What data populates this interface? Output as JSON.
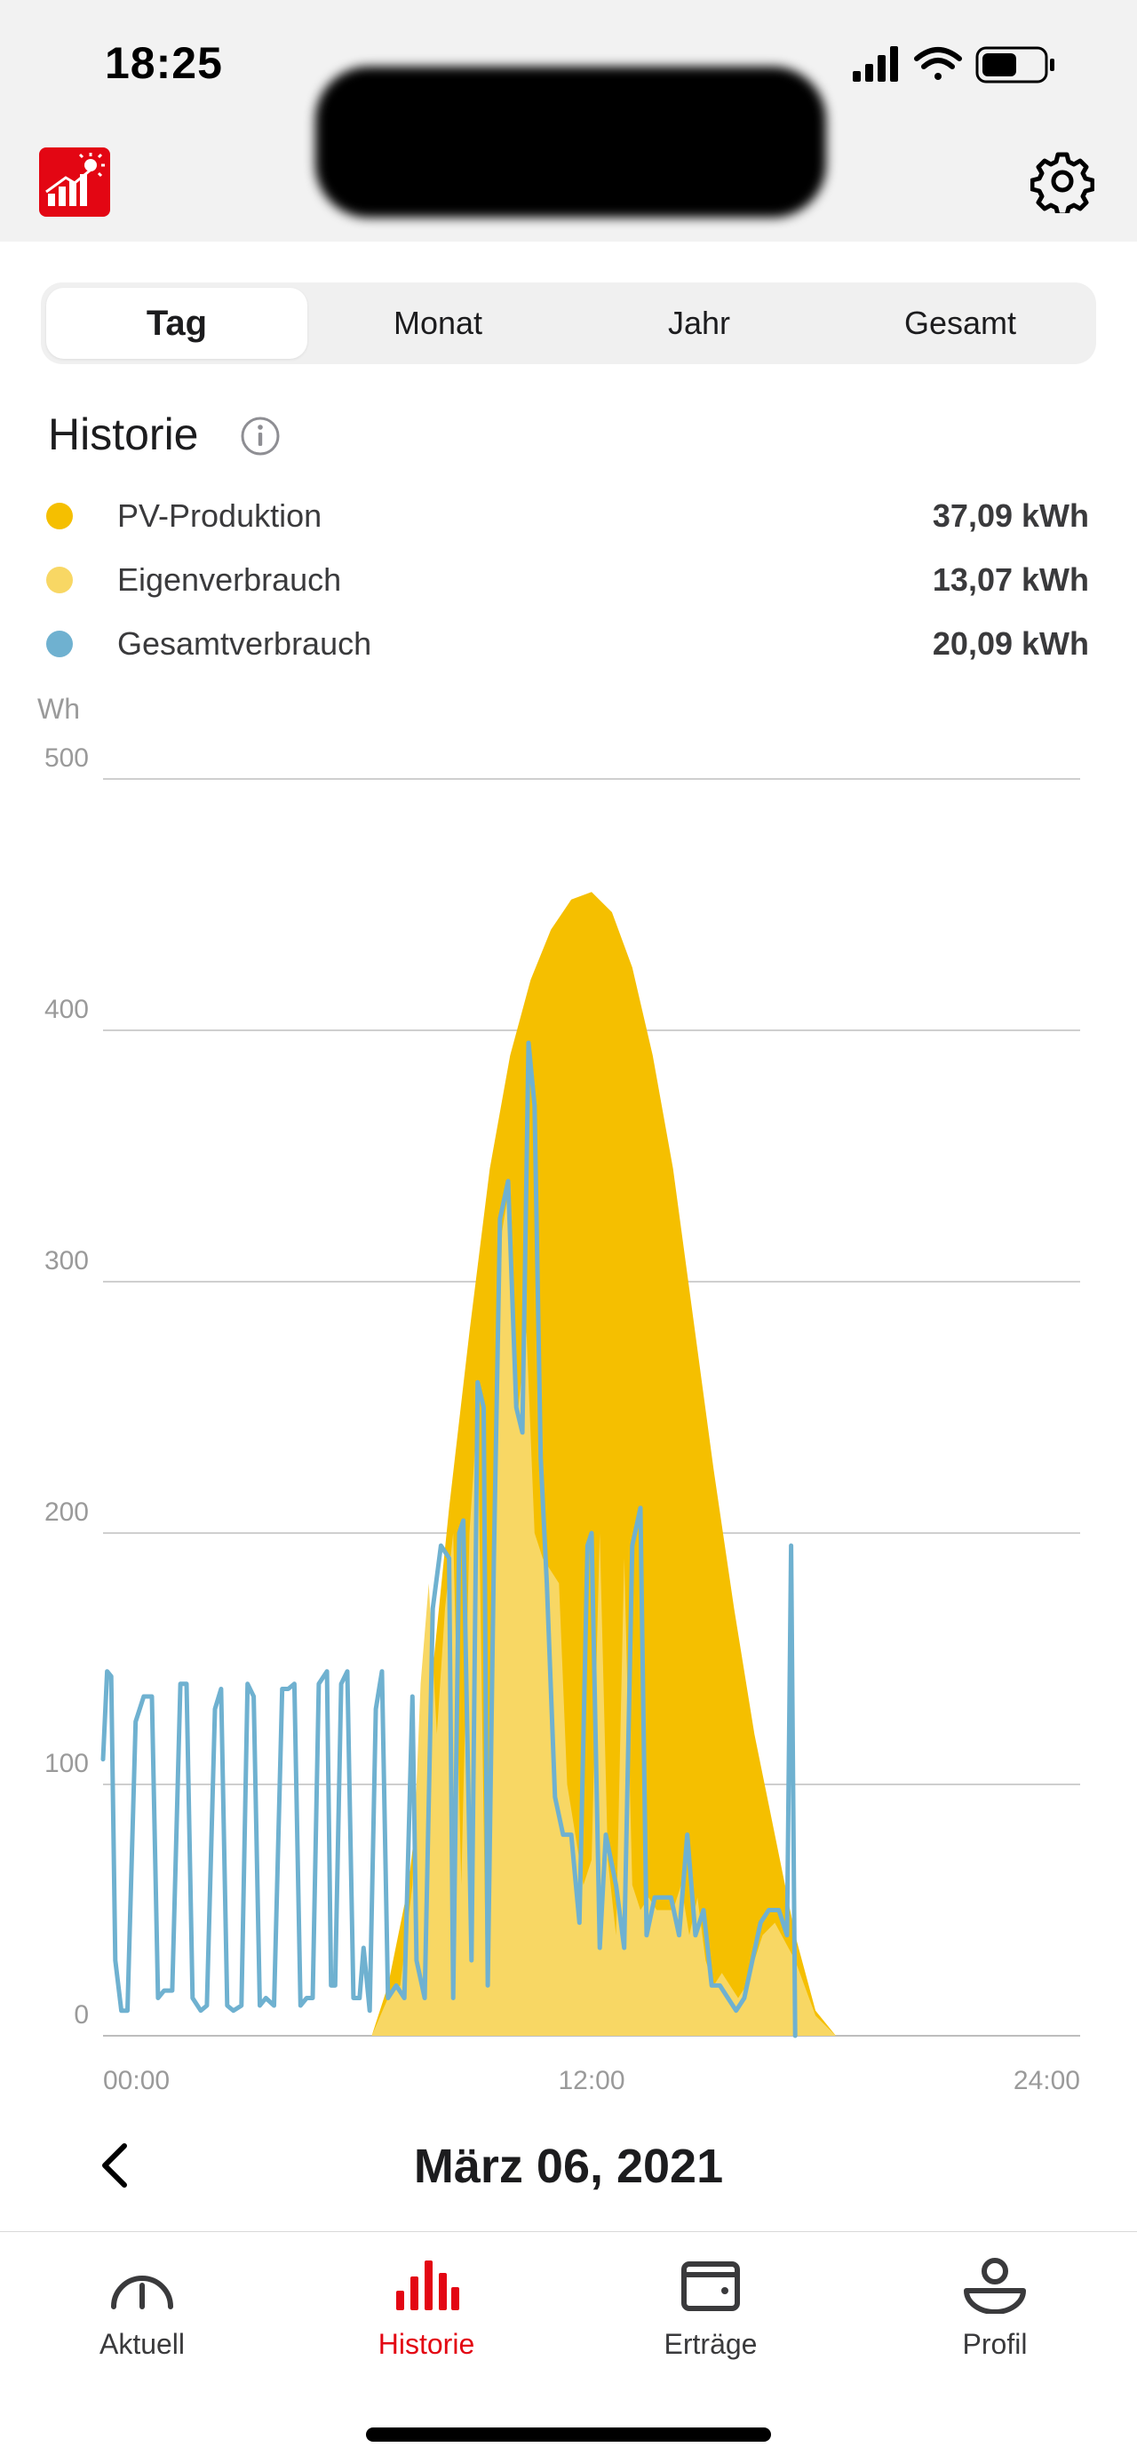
{
  "status_bar": {
    "time": "18:25",
    "icons": [
      "signal-icon",
      "wifi-icon",
      "battery-icon"
    ]
  },
  "header": {
    "logo_icon": "solar-app-logo",
    "settings_icon": "gear-icon"
  },
  "tabs": [
    {
      "label": "Tag",
      "active": true
    },
    {
      "label": "Monat",
      "active": false
    },
    {
      "label": "Jahr",
      "active": false
    },
    {
      "label": "Gesamt",
      "active": false
    }
  ],
  "history": {
    "title": "Historie",
    "legend": [
      {
        "name": "PV-Produktion",
        "value": "37,09 kWh",
        "color": "#f5bf00"
      },
      {
        "name": "Eigenverbrauch",
        "value": "13,07 kWh",
        "color": "#f8d764"
      },
      {
        "name": "Gesamtverbrauch",
        "value": "20,09 kWh",
        "color": "#6fb1d0"
      }
    ]
  },
  "chart_data": {
    "type": "area",
    "ylabel": "Wh",
    "ylim": [
      0,
      500
    ],
    "yticks": [
      "0",
      "100",
      "200",
      "300",
      "400",
      "500"
    ],
    "xticks": [
      "00:00",
      "12:00",
      "24:00"
    ],
    "xlim_hours": [
      0,
      24
    ],
    "grid": true,
    "series": [
      {
        "name": "PV-Produktion",
        "color": "#f5bf00",
        "kind": "area",
        "points": [
          [
            0,
            0
          ],
          [
            6.6,
            0
          ],
          [
            7,
            20
          ],
          [
            7.5,
            60
          ],
          [
            8,
            130
          ],
          [
            8.5,
            210
          ],
          [
            9,
            280
          ],
          [
            9.5,
            345
          ],
          [
            10,
            390
          ],
          [
            10.5,
            420
          ],
          [
            11,
            440
          ],
          [
            11.5,
            452
          ],
          [
            12,
            455
          ],
          [
            12.5,
            447
          ],
          [
            13,
            425
          ],
          [
            13.5,
            390
          ],
          [
            14,
            345
          ],
          [
            14.5,
            285
          ],
          [
            15,
            225
          ],
          [
            15.5,
            170
          ],
          [
            16,
            120
          ],
          [
            16.5,
            80
          ],
          [
            17,
            40
          ],
          [
            17.5,
            10
          ],
          [
            18,
            0
          ],
          [
            24,
            0
          ]
        ]
      },
      {
        "name": "Eigenverbrauch",
        "color": "#f8d764",
        "kind": "area",
        "points": [
          [
            0,
            0
          ],
          [
            6.6,
            0
          ],
          [
            7,
            15
          ],
          [
            7.3,
            20
          ],
          [
            7.6,
            60
          ],
          [
            7.8,
            140
          ],
          [
            8,
            180
          ],
          [
            8.2,
            120
          ],
          [
            8.4,
            170
          ],
          [
            8.6,
            200
          ],
          [
            8.8,
            60
          ],
          [
            9,
            200
          ],
          [
            9.2,
            250
          ],
          [
            9.4,
            30
          ],
          [
            9.6,
            180
          ],
          [
            9.8,
            320
          ],
          [
            10,
            340
          ],
          [
            10.2,
            250
          ],
          [
            10.4,
            280
          ],
          [
            10.6,
            200
          ],
          [
            10.8,
            190
          ],
          [
            11,
            185
          ],
          [
            11.2,
            180
          ],
          [
            11.4,
            100
          ],
          [
            11.6,
            80
          ],
          [
            11.8,
            60
          ],
          [
            12,
            70
          ],
          [
            12.2,
            200
          ],
          [
            12.4,
            70
          ],
          [
            12.6,
            40
          ],
          [
            12.8,
            190
          ],
          [
            13,
            60
          ],
          [
            13.2,
            50
          ],
          [
            13.4,
            55
          ],
          [
            13.6,
            50
          ],
          [
            13.8,
            50
          ],
          [
            14,
            50
          ],
          [
            14.2,
            60
          ],
          [
            14.4,
            40
          ],
          [
            14.6,
            55
          ],
          [
            14.8,
            30
          ],
          [
            15,
            20
          ],
          [
            15.2,
            25
          ],
          [
            15.4,
            20
          ],
          [
            15.6,
            15
          ],
          [
            15.8,
            20
          ],
          [
            16,
            30
          ],
          [
            16.2,
            40
          ],
          [
            16.5,
            45
          ],
          [
            17,
            30
          ],
          [
            17.5,
            8
          ],
          [
            18,
            0
          ],
          [
            24,
            0
          ]
        ]
      },
      {
        "name": "Gesamtverbrauch",
        "color": "#6fb1d0",
        "kind": "line",
        "points": [
          [
            0,
            110
          ],
          [
            0.1,
            145
          ],
          [
            0.2,
            143
          ],
          [
            0.3,
            30
          ],
          [
            0.45,
            10
          ],
          [
            0.6,
            10
          ],
          [
            0.8,
            125
          ],
          [
            1,
            135
          ],
          [
            1.2,
            135
          ],
          [
            1.35,
            15
          ],
          [
            1.5,
            18
          ],
          [
            1.7,
            18
          ],
          [
            1.9,
            140
          ],
          [
            2.05,
            140
          ],
          [
            2.2,
            15
          ],
          [
            2.4,
            10
          ],
          [
            2.55,
            12
          ],
          [
            2.75,
            130
          ],
          [
            2.9,
            138
          ],
          [
            3.05,
            12
          ],
          [
            3.2,
            10
          ],
          [
            3.4,
            12
          ],
          [
            3.55,
            140
          ],
          [
            3.7,
            135
          ],
          [
            3.85,
            12
          ],
          [
            4,
            15
          ],
          [
            4.2,
            12
          ],
          [
            4.4,
            138
          ],
          [
            4.55,
            138
          ],
          [
            4.7,
            140
          ],
          [
            4.85,
            12
          ],
          [
            5,
            15
          ],
          [
            5.15,
            15
          ],
          [
            5.3,
            140
          ],
          [
            5.5,
            145
          ],
          [
            5.6,
            20
          ],
          [
            5.7,
            20
          ],
          [
            5.85,
            140
          ],
          [
            6,
            145
          ],
          [
            6.15,
            15
          ],
          [
            6.3,
            15
          ],
          [
            6.4,
            35
          ],
          [
            6.55,
            10
          ],
          [
            6.7,
            130
          ],
          [
            6.85,
            145
          ],
          [
            7,
            15
          ],
          [
            7.2,
            20
          ],
          [
            7.4,
            15
          ],
          [
            7.6,
            135
          ],
          [
            7.7,
            30
          ],
          [
            7.9,
            15
          ],
          [
            8.1,
            170
          ],
          [
            8.3,
            195
          ],
          [
            8.5,
            190
          ],
          [
            8.6,
            15
          ],
          [
            8.75,
            200
          ],
          [
            8.85,
            205
          ],
          [
            9.05,
            30
          ],
          [
            9.2,
            260
          ],
          [
            9.35,
            250
          ],
          [
            9.45,
            20
          ],
          [
            9.6,
            190
          ],
          [
            9.75,
            325
          ],
          [
            9.95,
            340
          ],
          [
            10.15,
            250
          ],
          [
            10.3,
            240
          ],
          [
            10.45,
            395
          ],
          [
            10.6,
            370
          ],
          [
            10.75,
            230
          ],
          [
            10.9,
            180
          ],
          [
            11.1,
            95
          ],
          [
            11.3,
            80
          ],
          [
            11.5,
            80
          ],
          [
            11.7,
            45
          ],
          [
            11.9,
            195
          ],
          [
            12,
            200
          ],
          [
            12.2,
            35
          ],
          [
            12.35,
            80
          ],
          [
            12.6,
            60
          ],
          [
            12.8,
            35
          ],
          [
            13,
            195
          ],
          [
            13.2,
            210
          ],
          [
            13.35,
            40
          ],
          [
            13.55,
            55
          ],
          [
            13.75,
            55
          ],
          [
            13.95,
            55
          ],
          [
            14.15,
            40
          ],
          [
            14.35,
            80
          ],
          [
            14.55,
            40
          ],
          [
            14.75,
            50
          ],
          [
            14.95,
            20
          ],
          [
            15.15,
            20
          ],
          [
            15.35,
            15
          ],
          [
            15.55,
            10
          ],
          [
            15.75,
            15
          ],
          [
            15.95,
            30
          ],
          [
            16.15,
            45
          ],
          [
            16.35,
            50
          ],
          [
            16.6,
            50
          ],
          [
            16.8,
            40
          ],
          [
            16.9,
            195
          ],
          [
            17.0,
            0
          ]
        ]
      }
    ]
  },
  "date_nav": {
    "date_label": "März 06, 2021",
    "back_icon": "chevron-left-icon"
  },
  "bottom_nav": [
    {
      "label": "Aktuell",
      "icon": "gauge-icon",
      "active": false
    },
    {
      "label": "Historie",
      "icon": "bar-chart-icon",
      "active": true
    },
    {
      "label": "Erträge",
      "icon": "wallet-icon",
      "active": false
    },
    {
      "label": "Profil",
      "icon": "profile-icon",
      "active": false
    }
  ]
}
